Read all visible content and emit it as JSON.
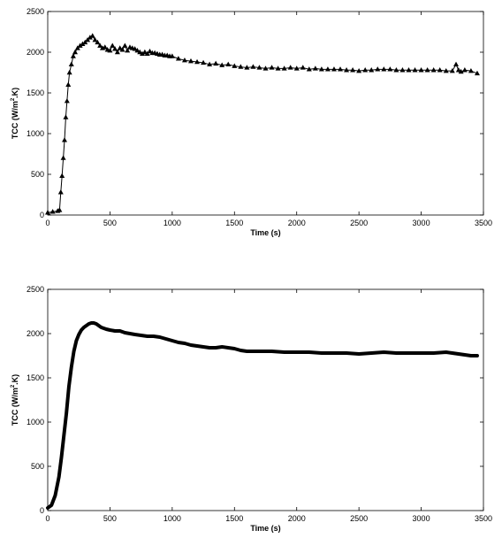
{
  "chart_data": [
    {
      "type": "scatter",
      "title": "",
      "xlabel": "Time (s)",
      "ylabel": "TCC (W/m2.K)",
      "ylabel_parts": {
        "main": "TCC (W/m",
        "sup": "2",
        "tail": ".K)"
      },
      "xlim": [
        0,
        3500
      ],
      "ylim": [
        0,
        2500
      ],
      "xticks": [
        0,
        500,
        1000,
        1500,
        2000,
        2500,
        3000,
        3500
      ],
      "yticks": [
        0,
        500,
        1000,
        1500,
        2000,
        2500
      ],
      "grid": false,
      "marker": "triangle",
      "series": [
        {
          "x": [
            0,
            40,
            80,
            95,
            105,
            115,
            125,
            135,
            145,
            155,
            165,
            175,
            190,
            205,
            220,
            240,
            260,
            280,
            300,
            320,
            340,
            360,
            380,
            400,
            420,
            440,
            460,
            480,
            500,
            520,
            540,
            560,
            580,
            600,
            620,
            640,
            660,
            680,
            700,
            720,
            740,
            760,
            780,
            800,
            820,
            840,
            860,
            880,
            900,
            920,
            940,
            960,
            980,
            1000,
            1050,
            1100,
            1150,
            1200,
            1250,
            1300,
            1350,
            1400,
            1450,
            1500,
            1550,
            1600,
            1650,
            1700,
            1750,
            1800,
            1850,
            1900,
            1950,
            2000,
            2050,
            2100,
            2150,
            2200,
            2250,
            2300,
            2350,
            2400,
            2450,
            2500,
            2550,
            2600,
            2650,
            2700,
            2750,
            2800,
            2850,
            2900,
            2950,
            3000,
            3050,
            3100,
            3150,
            3200,
            3250,
            3280,
            3300,
            3320,
            3350,
            3400,
            3450
          ],
          "y": [
            30,
            40,
            50,
            60,
            280,
            480,
            700,
            920,
            1200,
            1400,
            1600,
            1750,
            1850,
            1950,
            2000,
            2050,
            2080,
            2100,
            2120,
            2150,
            2180,
            2200,
            2150,
            2120,
            2080,
            2050,
            2060,
            2030,
            2020,
            2080,
            2040,
            2000,
            2050,
            2030,
            2080,
            2020,
            2060,
            2050,
            2040,
            2020,
            2000,
            1980,
            2000,
            1980,
            2010,
            1990,
            1990,
            1980,
            1970,
            1970,
            1960,
            1960,
            1950,
            1950,
            1920,
            1900,
            1890,
            1880,
            1870,
            1850,
            1860,
            1840,
            1850,
            1830,
            1820,
            1810,
            1820,
            1810,
            1800,
            1810,
            1800,
            1800,
            1810,
            1800,
            1810,
            1790,
            1800,
            1790,
            1790,
            1790,
            1790,
            1780,
            1780,
            1770,
            1780,
            1780,
            1790,
            1790,
            1790,
            1780,
            1780,
            1780,
            1780,
            1780,
            1780,
            1780,
            1780,
            1770,
            1770,
            1850,
            1780,
            1760,
            1780,
            1770,
            1740
          ]
        }
      ]
    },
    {
      "type": "line",
      "title": "",
      "xlabel": "Time (s)",
      "ylabel": "TCC (W/m2.K)",
      "ylabel_parts": {
        "main": "TCC (W/m",
        "sup": "2",
        "tail": ".K)"
      },
      "xlim": [
        0,
        3500
      ],
      "ylim": [
        0,
        2500
      ],
      "xticks": [
        0,
        500,
        1000,
        1500,
        2000,
        2500,
        3000,
        3500
      ],
      "yticks": [
        0,
        500,
        1000,
        1500,
        2000,
        2500
      ],
      "grid": false,
      "series": [
        {
          "x": [
            0,
            30,
            60,
            90,
            110,
            130,
            150,
            170,
            190,
            210,
            230,
            250,
            270,
            290,
            310,
            330,
            350,
            370,
            390,
            410,
            430,
            450,
            470,
            500,
            540,
            580,
            620,
            660,
            700,
            750,
            800,
            850,
            900,
            950,
            1000,
            1050,
            1100,
            1150,
            1200,
            1250,
            1300,
            1350,
            1400,
            1450,
            1500,
            1550,
            1600,
            1700,
            1800,
            1900,
            2000,
            2100,
            2200,
            2300,
            2400,
            2500,
            2600,
            2700,
            2800,
            2900,
            3000,
            3100,
            3200,
            3250,
            3300,
            3350,
            3400,
            3450
          ],
          "y": [
            30,
            60,
            170,
            380,
            600,
            850,
            1100,
            1400,
            1620,
            1800,
            1920,
            1990,
            2040,
            2070,
            2090,
            2110,
            2120,
            2120,
            2110,
            2090,
            2070,
            2060,
            2050,
            2040,
            2030,
            2030,
            2010,
            2000,
            1990,
            1980,
            1970,
            1970,
            1960,
            1940,
            1920,
            1900,
            1890,
            1870,
            1860,
            1850,
            1840,
            1840,
            1850,
            1840,
            1830,
            1810,
            1800,
            1800,
            1800,
            1790,
            1790,
            1790,
            1780,
            1780,
            1780,
            1770,
            1780,
            1790,
            1780,
            1780,
            1780,
            1780,
            1790,
            1780,
            1770,
            1760,
            1750,
            1750
          ]
        }
      ]
    }
  ]
}
